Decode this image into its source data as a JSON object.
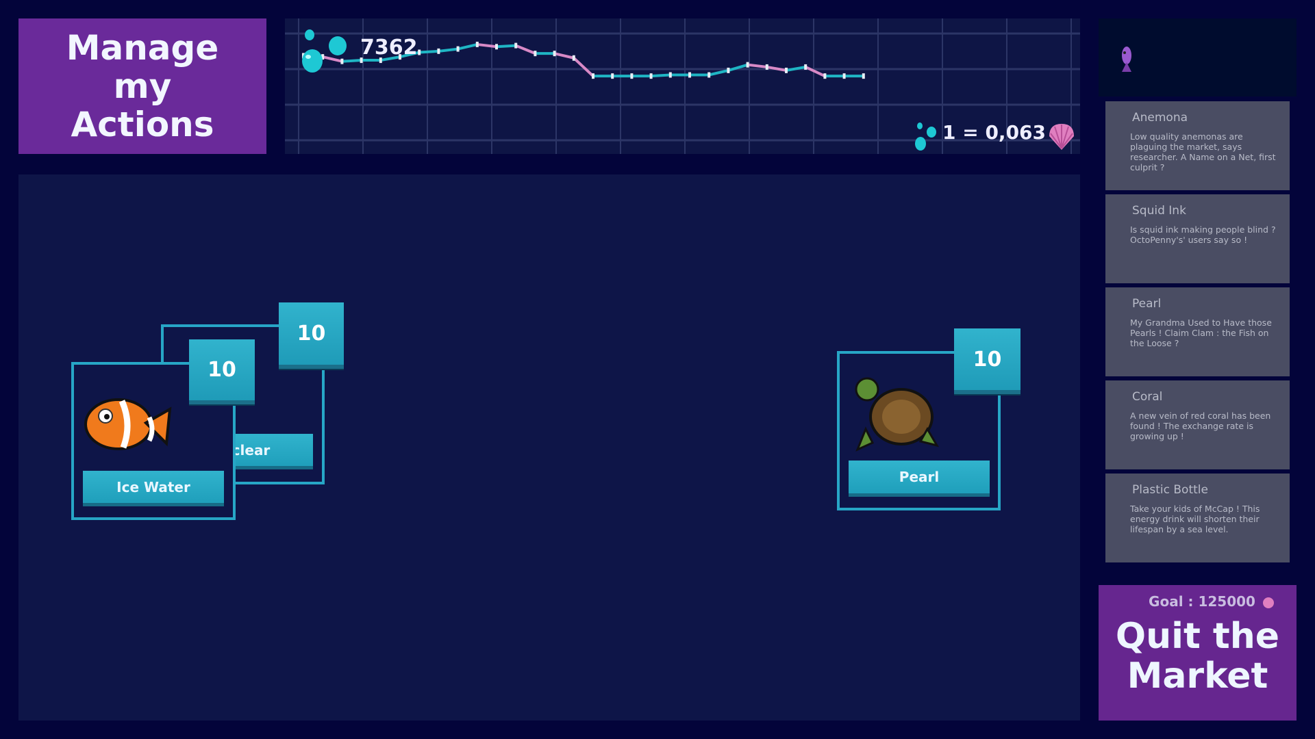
{
  "manage_button": {
    "label": "Manage my Actions"
  },
  "balance": {
    "value": "7362",
    "icon": "bubbles-icon"
  },
  "rate": {
    "lhs": "1 =",
    "value": "0,063",
    "icon_left": "bubbles-icon",
    "icon_right": "shell-icon"
  },
  "chart_data": {
    "type": "line",
    "values": [
      27,
      26,
      22,
      23,
      23,
      26,
      30,
      31,
      33,
      37,
      35,
      36,
      29,
      29,
      25,
      9,
      9,
      9,
      9,
      10,
      10,
      10,
      14,
      19,
      17,
      14,
      17,
      9,
      9,
      9
    ],
    "ylim": [
      -60,
      60
    ],
    "grid": true,
    "colors": {
      "up": "#1fb5c4",
      "down": "#d889c6",
      "point": "#e8eef5"
    }
  },
  "news": [
    {
      "title": "Anemona",
      "body": "Low quality anemonas are plaguing the market, says researcher. A Name on a Net, first culprit ?"
    },
    {
      "title": "Squid Ink",
      "body": "Is squid ink making people blind ? OctoPenny's' users say so !"
    },
    {
      "title": "Pearl",
      "body": "My Grandma Used to Have those Pearls ! Claim Clam : the Fish on the Loose ?"
    },
    {
      "title": "Coral",
      "body": "A new vein of red coral has been found ! The exchange rate is growing up !"
    },
    {
      "title": "Plastic Bottle",
      "body": "Take your kids of McCap ! This energy drink will shorten their lifespan by a sea level."
    }
  ],
  "cards": [
    {
      "name": "Nuclear",
      "count": "10"
    },
    {
      "name": "Ice Water",
      "count": "10"
    },
    {
      "name": "Pearl",
      "count": "10"
    }
  ],
  "quit": {
    "goal": "Goal : 125000",
    "label": "Quit the Market"
  },
  "colors": {
    "accent": "#27a6c6",
    "purple": "#6a2a9a",
    "bg": "#0e1548"
  }
}
